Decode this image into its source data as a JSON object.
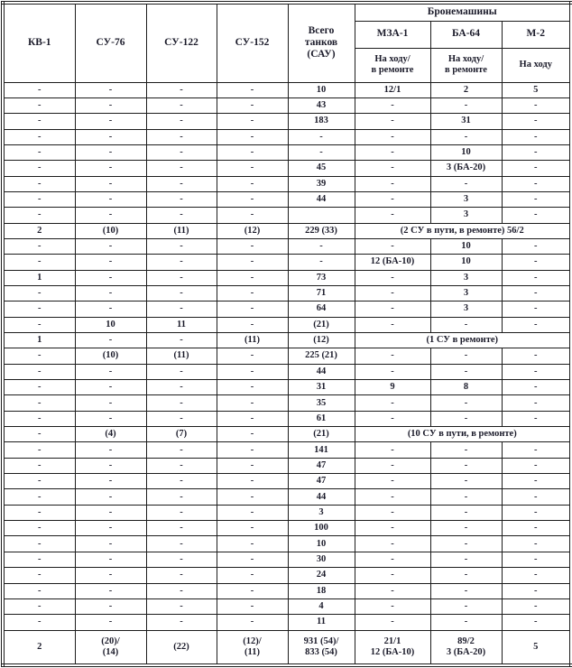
{
  "table": {
    "group_header": "Бронемашины",
    "columns": [
      "КВ-1",
      "СУ-76",
      "СУ-122",
      "СУ-152",
      "Всего\nтанков\n(САУ)",
      "МЗА-1",
      "БА-64",
      "М-2"
    ],
    "subheaders": [
      "На ходу/\nв ремонте",
      "На ходу/\nв ремонте",
      "На ходу"
    ],
    "rows": [
      {
        "cells": [
          "-",
          "-",
          "-",
          "-",
          "10",
          "12/1",
          "2",
          "5"
        ]
      },
      {
        "cells": [
          "-",
          "-",
          "-",
          "-",
          "43",
          "-",
          "-",
          "-"
        ]
      },
      {
        "cells": [
          "-",
          "-",
          "-",
          "-",
          "183",
          "-",
          "31",
          "-"
        ]
      },
      {
        "cells": [
          "-",
          "-",
          "-",
          "-",
          "-",
          "-",
          "-",
          "-"
        ]
      },
      {
        "cells": [
          "-",
          "-",
          "-",
          "-",
          "-",
          "-",
          "10",
          "-"
        ]
      },
      {
        "cells": [
          "-",
          "-",
          "-",
          "-",
          "45",
          "-",
          "3 (БА-20)",
          "-"
        ]
      },
      {
        "cells": [
          "-",
          "-",
          "-",
          "-",
          "39",
          "-",
          "-",
          "-"
        ]
      },
      {
        "cells": [
          "-",
          "-",
          "-",
          "-",
          "44",
          "-",
          "3",
          "-"
        ]
      },
      {
        "cells": [
          "-",
          "-",
          "-",
          "-",
          "",
          "-",
          "3",
          "-"
        ]
      },
      {
        "cells": [
          "2",
          "(10)",
          "(11)",
          "(12)",
          "229 (33)"
        ],
        "merged": "(2 СУ в пути, в ремонте) 56/2"
      },
      {
        "cells": [
          "-",
          "-",
          "-",
          "-",
          "-",
          "-",
          "10",
          "-"
        ]
      },
      {
        "cells": [
          "-",
          "-",
          "-",
          "-",
          "-",
          "12 (БА-10)",
          "10",
          "-"
        ]
      },
      {
        "cells": [
          "1",
          "-",
          "-",
          "-",
          "73",
          "-",
          "3",
          "-"
        ]
      },
      {
        "cells": [
          "-",
          "-",
          "-",
          "-",
          "71",
          "-",
          "3",
          "-"
        ]
      },
      {
        "cells": [
          "-",
          "-",
          "-",
          "-",
          "64",
          "-",
          "3",
          "-"
        ]
      },
      {
        "cells": [
          "-",
          "10",
          "11",
          "-",
          "(21)",
          "-",
          "-",
          "-"
        ]
      },
      {
        "cells": [
          "1",
          "-",
          "-",
          "(11)",
          "(12)"
        ],
        "merged": "(1 СУ в ремонте)"
      },
      {
        "cells": [
          "-",
          "(10)",
          "(11)",
          "-",
          "225 (21)",
          "-",
          "-",
          "-"
        ]
      },
      {
        "cells": [
          "-",
          "-",
          "-",
          "-",
          "44",
          "-",
          "-",
          "-"
        ]
      },
      {
        "cells": [
          "-",
          "-",
          "-",
          "-",
          "31",
          "9",
          "8",
          "-"
        ]
      },
      {
        "cells": [
          "-",
          "-",
          "-",
          "-",
          "35",
          "-",
          "-",
          "-"
        ]
      },
      {
        "cells": [
          "-",
          "-",
          "-",
          "-",
          "61",
          "-",
          "-",
          "-"
        ]
      },
      {
        "cells": [
          "-",
          "(4)",
          "(7)",
          "-",
          "(21)"
        ],
        "merged": "(10 СУ в пути, в ремонте)"
      },
      {
        "cells": [
          "-",
          "-",
          "-",
          "-",
          "141",
          "-",
          "-",
          "-"
        ]
      },
      {
        "cells": [
          "-",
          "-",
          "-",
          "-",
          "47",
          "-",
          "-",
          "-"
        ]
      },
      {
        "cells": [
          "-",
          "-",
          "-",
          "-",
          "47",
          "-",
          "-",
          "-"
        ]
      },
      {
        "cells": [
          "-",
          "-",
          "-",
          "-",
          "44",
          "-",
          "-",
          "-"
        ]
      },
      {
        "cells": [
          "-",
          "-",
          "-",
          "-",
          "3",
          "-",
          "-",
          "-"
        ]
      },
      {
        "cells": [
          "-",
          "-",
          "-",
          "-",
          "100",
          "-",
          "-",
          "-"
        ]
      },
      {
        "cells": [
          "-",
          "-",
          "-",
          "-",
          "10",
          "-",
          "-",
          "-"
        ]
      },
      {
        "cells": [
          "-",
          "-",
          "-",
          "-",
          "30",
          "-",
          "-",
          "-"
        ]
      },
      {
        "cells": [
          "-",
          "-",
          "-",
          "-",
          "24",
          "-",
          "-",
          "-"
        ]
      },
      {
        "cells": [
          "-",
          "-",
          "-",
          "-",
          "18",
          "-",
          "-",
          "-"
        ]
      },
      {
        "cells": [
          "-",
          "-",
          "-",
          "-",
          "4",
          "-",
          "-",
          "-"
        ]
      },
      {
        "cells": [
          "-",
          "-",
          "-",
          "-",
          "11",
          "-",
          "-",
          "-"
        ]
      },
      {
        "cells": [
          "2",
          "(20)/\n(14)",
          "(22)",
          "(12)/\n(11)",
          "931 (54)/\n833 (54)",
          "21/1\n12 (БА-10)",
          "89/2\n3 (БА-20)",
          "5"
        ],
        "total": true
      }
    ]
  },
  "colors": {
    "text": "#1b1b2a",
    "border": "#1c1c1c",
    "background": "#ffffff"
  }
}
